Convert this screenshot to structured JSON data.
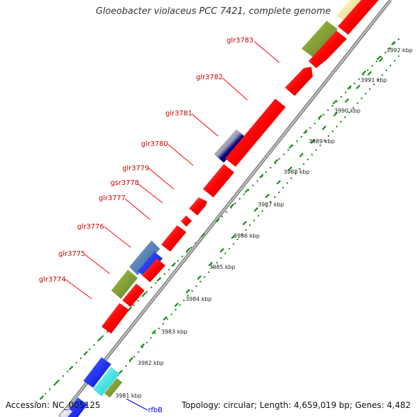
{
  "title": "Gloeobacter violaceus PCC 7421, complete genome",
  "footer": {
    "accession": "Accession: NC_005125",
    "summary": "Topology: circular; Length: 4,659,019 bp; Genes: 4,482"
  },
  "colors": {
    "forward_gene": "#ff0000",
    "backbone": "#999999",
    "tick": "#1a8a1a",
    "label_red": "#cc0000",
    "label_blue": "#0000cc"
  },
  "scale_ticks": [
    "3981 kbp",
    "3982 kbp",
    "3983 kbp",
    "3984 kbp",
    "3985 kbp",
    "3986 kbp",
    "3987 kbp",
    "3988 kbp",
    "3989 kbp",
    "3990 kbp",
    "3991 kbp",
    "3992 kbp"
  ],
  "gene_labels": [
    {
      "name": "glr3783",
      "color": "red"
    },
    {
      "name": "glr3782",
      "color": "red"
    },
    {
      "name": "glr3781",
      "color": "red"
    },
    {
      "name": "glr3780",
      "color": "red"
    },
    {
      "name": "glr3779",
      "color": "red"
    },
    {
      "name": "gsr3778",
      "color": "red"
    },
    {
      "name": "glr3777",
      "color": "red"
    },
    {
      "name": "glr3776",
      "color": "red"
    },
    {
      "name": "glr3775",
      "color": "red"
    },
    {
      "name": "glr3774",
      "color": "red"
    },
    {
      "name": "rfbB",
      "color": "blue"
    }
  ]
}
